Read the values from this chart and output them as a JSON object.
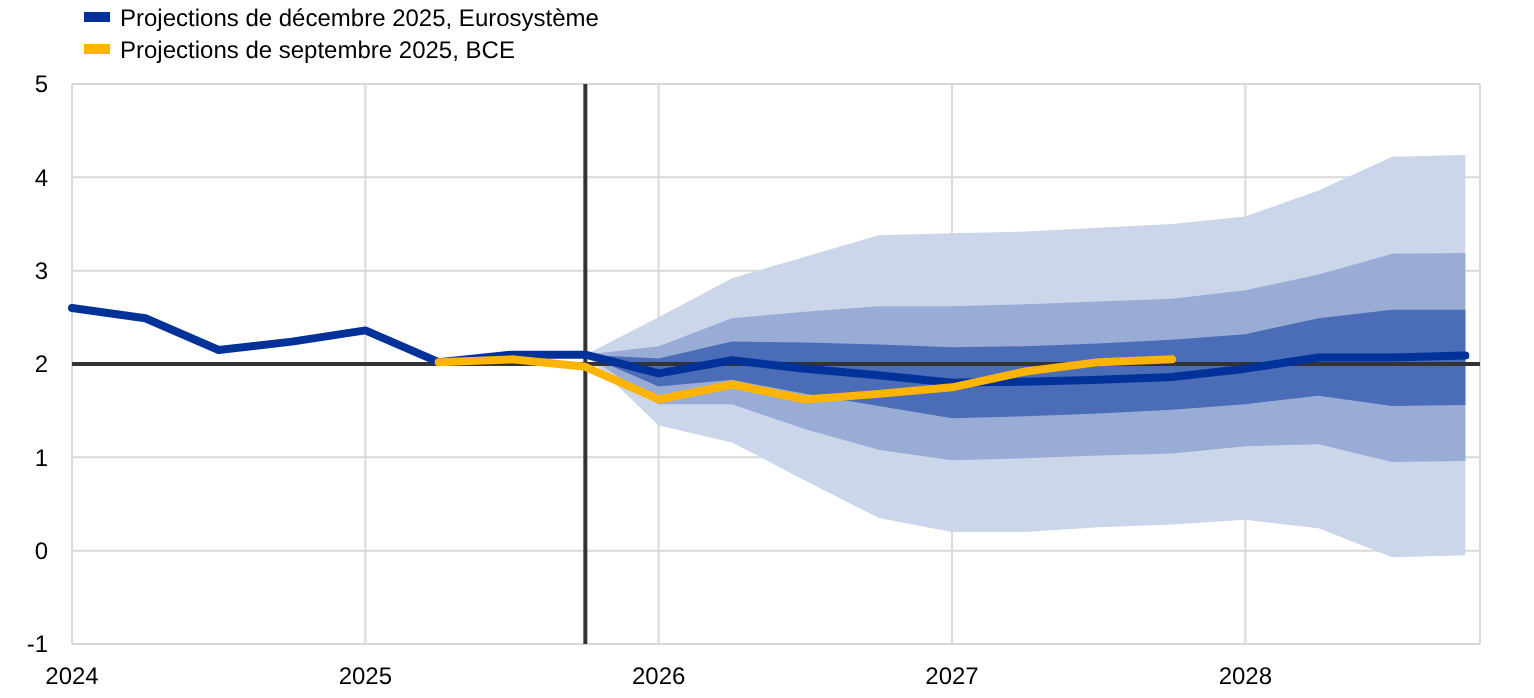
{
  "chart_data": {
    "type": "line",
    "legend": "top left",
    "grid": true,
    "xlim": [
      2024,
      2028.8
    ],
    "xticks": [
      2024,
      2025,
      2026,
      2027,
      2028
    ],
    "ylim": [
      -1,
      5
    ],
    "yticks": [
      -1,
      0,
      1,
      2,
      3,
      4,
      5
    ],
    "ref_lines": [
      {
        "axis": "y",
        "value": 2,
        "color": "#333333"
      },
      {
        "axis": "x",
        "value": 2025.75,
        "color": "#333333"
      }
    ],
    "series": [
      {
        "color": "#ccd6ea",
        "x": [
          2025.75,
          2026,
          2026.25,
          2026.5,
          2026.75,
          2027,
          2027.25,
          2027.5,
          2027.75,
          2028,
          2028.25,
          2028.5,
          2028.75
        ],
        "values": [
          null,
          null,
          null,
          null,
          null,
          null,
          null,
          null,
          null,
          null,
          null,
          null,
          null
        ],
        "lower": [
          2.1,
          1.34,
          1.16,
          0.75,
          0.35,
          0.2,
          0.2,
          0.25,
          0.28,
          0.33,
          0.24,
          -0.07,
          -0.05
        ],
        "upper": [
          2.1,
          2.5,
          2.92,
          3.15,
          3.38,
          3.4,
          3.42,
          3.46,
          3.5,
          3.58,
          3.86,
          4.22,
          4.24
        ]
      },
      {
        "color": "#99acd6",
        "x": [
          2025.75,
          2026,
          2026.25,
          2026.5,
          2026.75,
          2027,
          2027.25,
          2027.5,
          2027.75,
          2028,
          2028.25,
          2028.5,
          2028.75
        ],
        "values": [
          null,
          null,
          null,
          null,
          null,
          null,
          null,
          null,
          null,
          null,
          null,
          null,
          null
        ],
        "lower": [
          2.1,
          1.57,
          1.57,
          1.3,
          1.08,
          0.97,
          0.99,
          1.02,
          1.04,
          1.12,
          1.14,
          0.95,
          0.96
        ],
        "upper": [
          2.1,
          2.19,
          2.49,
          2.56,
          2.62,
          2.62,
          2.64,
          2.67,
          2.7,
          2.79,
          2.96,
          3.18,
          3.19
        ]
      },
      {
        "color": "#4b6cb7",
        "x": [
          2025.75,
          2026,
          2026.25,
          2026.5,
          2026.75,
          2027,
          2027.25,
          2027.5,
          2027.75,
          2028,
          2028.25,
          2028.5,
          2028.75
        ],
        "values": [
          null,
          null,
          null,
          null,
          null,
          null,
          null,
          null,
          null,
          null,
          null,
          null,
          null
        ],
        "lower": [
          2.1,
          1.76,
          1.83,
          1.68,
          1.55,
          1.42,
          1.44,
          1.47,
          1.51,
          1.57,
          1.66,
          1.55,
          1.56
        ],
        "upper": [
          2.1,
          2.06,
          2.24,
          2.23,
          2.21,
          2.18,
          2.19,
          2.22,
          2.26,
          2.32,
          2.49,
          2.58,
          2.58
        ]
      },
      {
        "name": "Projections de décembre 2025, Eurosystème",
        "color": "#003299",
        "x": [
          2024,
          2024.25,
          2024.5,
          2024.75,
          2025,
          2025.25,
          2025.5,
          2025.75,
          2026,
          2026.25,
          2026.5,
          2026.75,
          2027,
          2027.25,
          2027.5,
          2027.75,
          2028,
          2028.25,
          2028.5,
          2028.75
        ],
        "values": [
          2.6,
          2.49,
          2.15,
          2.24,
          2.36,
          2.02,
          2.1,
          2.1,
          1.9,
          2.04,
          1.95,
          1.88,
          1.8,
          1.81,
          1.83,
          1.86,
          1.95,
          2.07,
          2.07,
          2.09
        ]
      },
      {
        "name": "Projections de septembre 2025, BCE",
        "color": "#ffb400",
        "x": [
          2025.25,
          2025.5,
          2025.75,
          2026,
          2026.25,
          2026.5,
          2026.75,
          2027,
          2027.25,
          2027.5,
          2027.75
        ],
        "values": [
          2.02,
          2.05,
          1.97,
          1.62,
          1.78,
          1.62,
          1.68,
          1.75,
          1.92,
          2.02,
          2.05
        ]
      }
    ]
  }
}
